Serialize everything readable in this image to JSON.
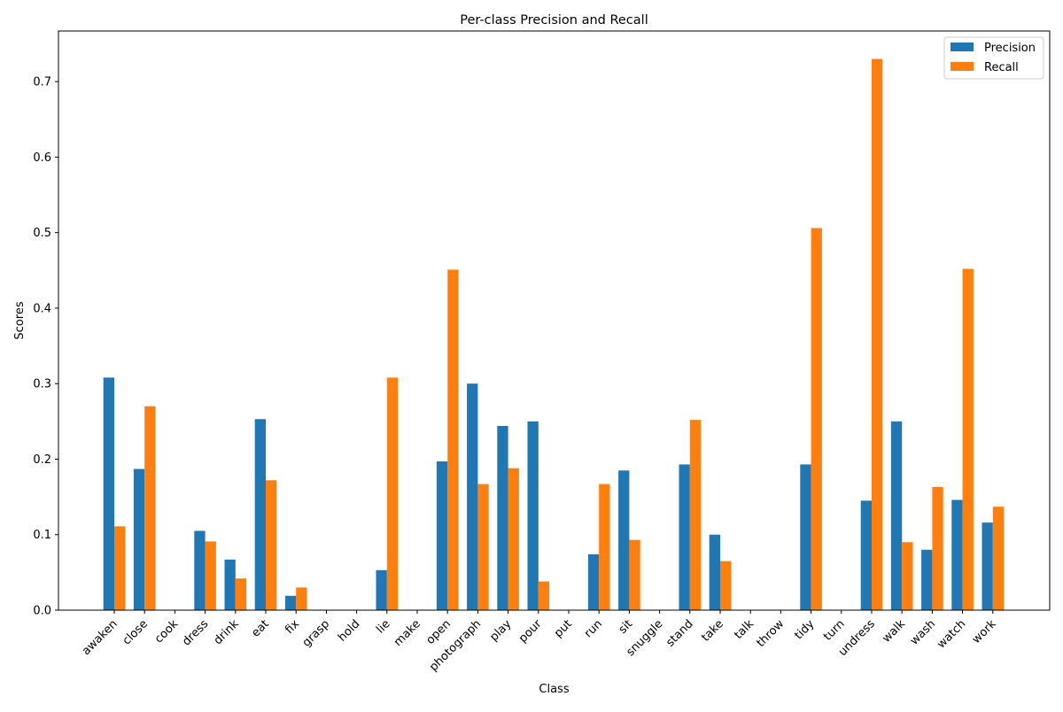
{
  "chart_data": {
    "type": "bar",
    "title": "Per-class Precision and Recall",
    "xlabel": "Class",
    "ylabel": "Scores",
    "ylim": [
      0,
      0.767
    ],
    "yticks": [
      0.0,
      0.1,
      0.2,
      0.3,
      0.4,
      0.5,
      0.6,
      0.7
    ],
    "ytick_labels": [
      "0.0",
      "0.1",
      "0.2",
      "0.3",
      "0.4",
      "0.5",
      "0.6",
      "0.7"
    ],
    "grid": false,
    "legend_position": "top-right",
    "categories": [
      "awaken",
      "close",
      "cook",
      "dress",
      "drink",
      "eat",
      "fix",
      "grasp",
      "hold",
      "lie",
      "make",
      "open",
      "photograph",
      "play",
      "pour",
      "put",
      "run",
      "sit",
      "snuggle",
      "stand",
      "take",
      "talk",
      "throw",
      "tidy",
      "turn",
      "undress",
      "walk",
      "wash",
      "watch",
      "work"
    ],
    "series": [
      {
        "name": "Precision",
        "color": "#1f77b4",
        "values": [
          0.308,
          0.187,
          0.0,
          0.105,
          0.067,
          0.253,
          0.019,
          0.0,
          0.0,
          0.053,
          0.0,
          0.197,
          0.3,
          0.244,
          0.25,
          0.0,
          0.074,
          0.185,
          0.0,
          0.193,
          0.1,
          0.0,
          0.0,
          0.193,
          0.0,
          0.145,
          0.25,
          0.08,
          0.146,
          0.116
        ]
      },
      {
        "name": "Recall",
        "color": "#ff7f0e",
        "values": [
          0.111,
          0.27,
          0.0,
          0.091,
          0.042,
          0.172,
          0.03,
          0.0,
          0.0,
          0.308,
          0.0,
          0.451,
          0.167,
          0.188,
          0.038,
          0.0,
          0.167,
          0.093,
          0.0,
          0.252,
          0.065,
          0.0,
          0.0,
          0.506,
          0.0,
          0.73,
          0.09,
          0.163,
          0.452,
          0.137
        ]
      }
    ]
  }
}
